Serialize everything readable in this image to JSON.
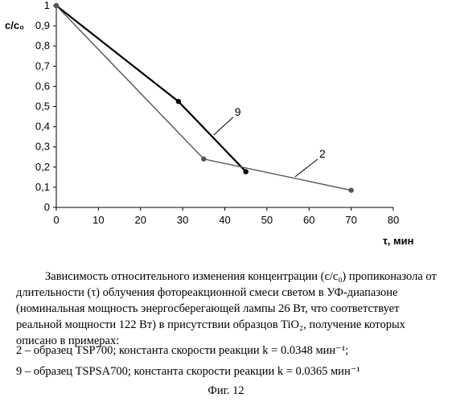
{
  "chart_data": {
    "type": "line",
    "ylabel": "c/c₀",
    "xlabel": "τ, мин",
    "xlim": [
      0,
      80
    ],
    "ylim": [
      0,
      1
    ],
    "x_ticks": [
      "0",
      "10",
      "20",
      "30",
      "40",
      "50",
      "60",
      "70",
      "80"
    ],
    "y_ticks": [
      "0",
      "0,1",
      "0,2",
      "0,3",
      "0,4",
      "0,5",
      "0,6",
      "0,7",
      "0,8",
      "0,9",
      "1"
    ],
    "grid": false,
    "series": [
      {
        "name": "9",
        "color": "#000000",
        "points": [
          {
            "x": 0,
            "y": 1.0
          },
          {
            "x": 29,
            "y": 0.525
          },
          {
            "x": 45,
            "y": 0.177
          }
        ]
      },
      {
        "name": "2",
        "color": "#555555",
        "points": [
          {
            "x": 0,
            "y": 1.0
          },
          {
            "x": 35,
            "y": 0.24
          },
          {
            "x": 70,
            "y": 0.085
          }
        ]
      }
    ]
  },
  "caption": {
    "paragraph": "Зависимость относительного изменения концентрации (c/c₀) пропиконазола от длительности (τ) облучения фотореакционной смеси светом в УФ-диапазоне (номинальная мощность энергосберегающей лампы 26 Вт, что соответствует реальной мощности 122 Вт) в присутствии образцов TiO₂, получение которых описано в примерах:",
    "legend_2": "2 – образец TSP700;  константа скорости реакции k = 0.0348 мин⁻¹;",
    "legend_9": "9 – образец TSPSA700;  константа скорости реакции k = 0.0365 мин⁻¹",
    "figure_label": "Фиг. 12"
  }
}
